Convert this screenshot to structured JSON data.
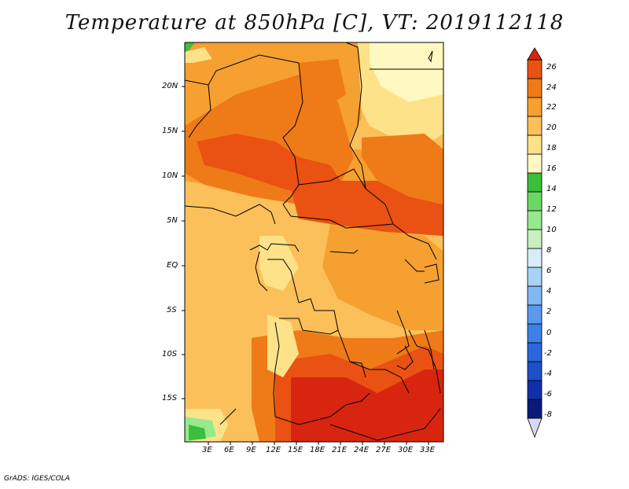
{
  "title": "Temperature at 850hPa [C], VT: 2019112118",
  "footer": "GrADS: IGES/COLA",
  "map": {
    "lon_ticks": [
      "3E",
      "6E",
      "9E",
      "12E",
      "15E",
      "18E",
      "21E",
      "24E",
      "27E",
      "30E",
      "33E"
    ],
    "lat_ticks": [
      "20N",
      "15N",
      "10N",
      "5N",
      "EQ",
      "5S",
      "10S",
      "15S"
    ]
  },
  "colorbar": {
    "levels": [
      "26",
      "24",
      "22",
      "20",
      "18",
      "16",
      "14",
      "12",
      "10",
      "8",
      "6",
      "4",
      "2",
      "0",
      "-2",
      "-4",
      "-6",
      "-8"
    ],
    "colors": [
      "#d8d8f0",
      "#0a1a78",
      "#1030a8",
      "#1e50c8",
      "#2868dc",
      "#3c82e6",
      "#5a9aee",
      "#82b8f4",
      "#a8d2f8",
      "#d8ecfa",
      "#c8f0c0",
      "#98e890",
      "#6cd864",
      "#3cbe3c",
      "#fff8c0",
      "#fde28a",
      "#fbc05a",
      "#f5a030",
      "#ef7a18",
      "#e95212",
      "#d82510"
    ]
  }
}
